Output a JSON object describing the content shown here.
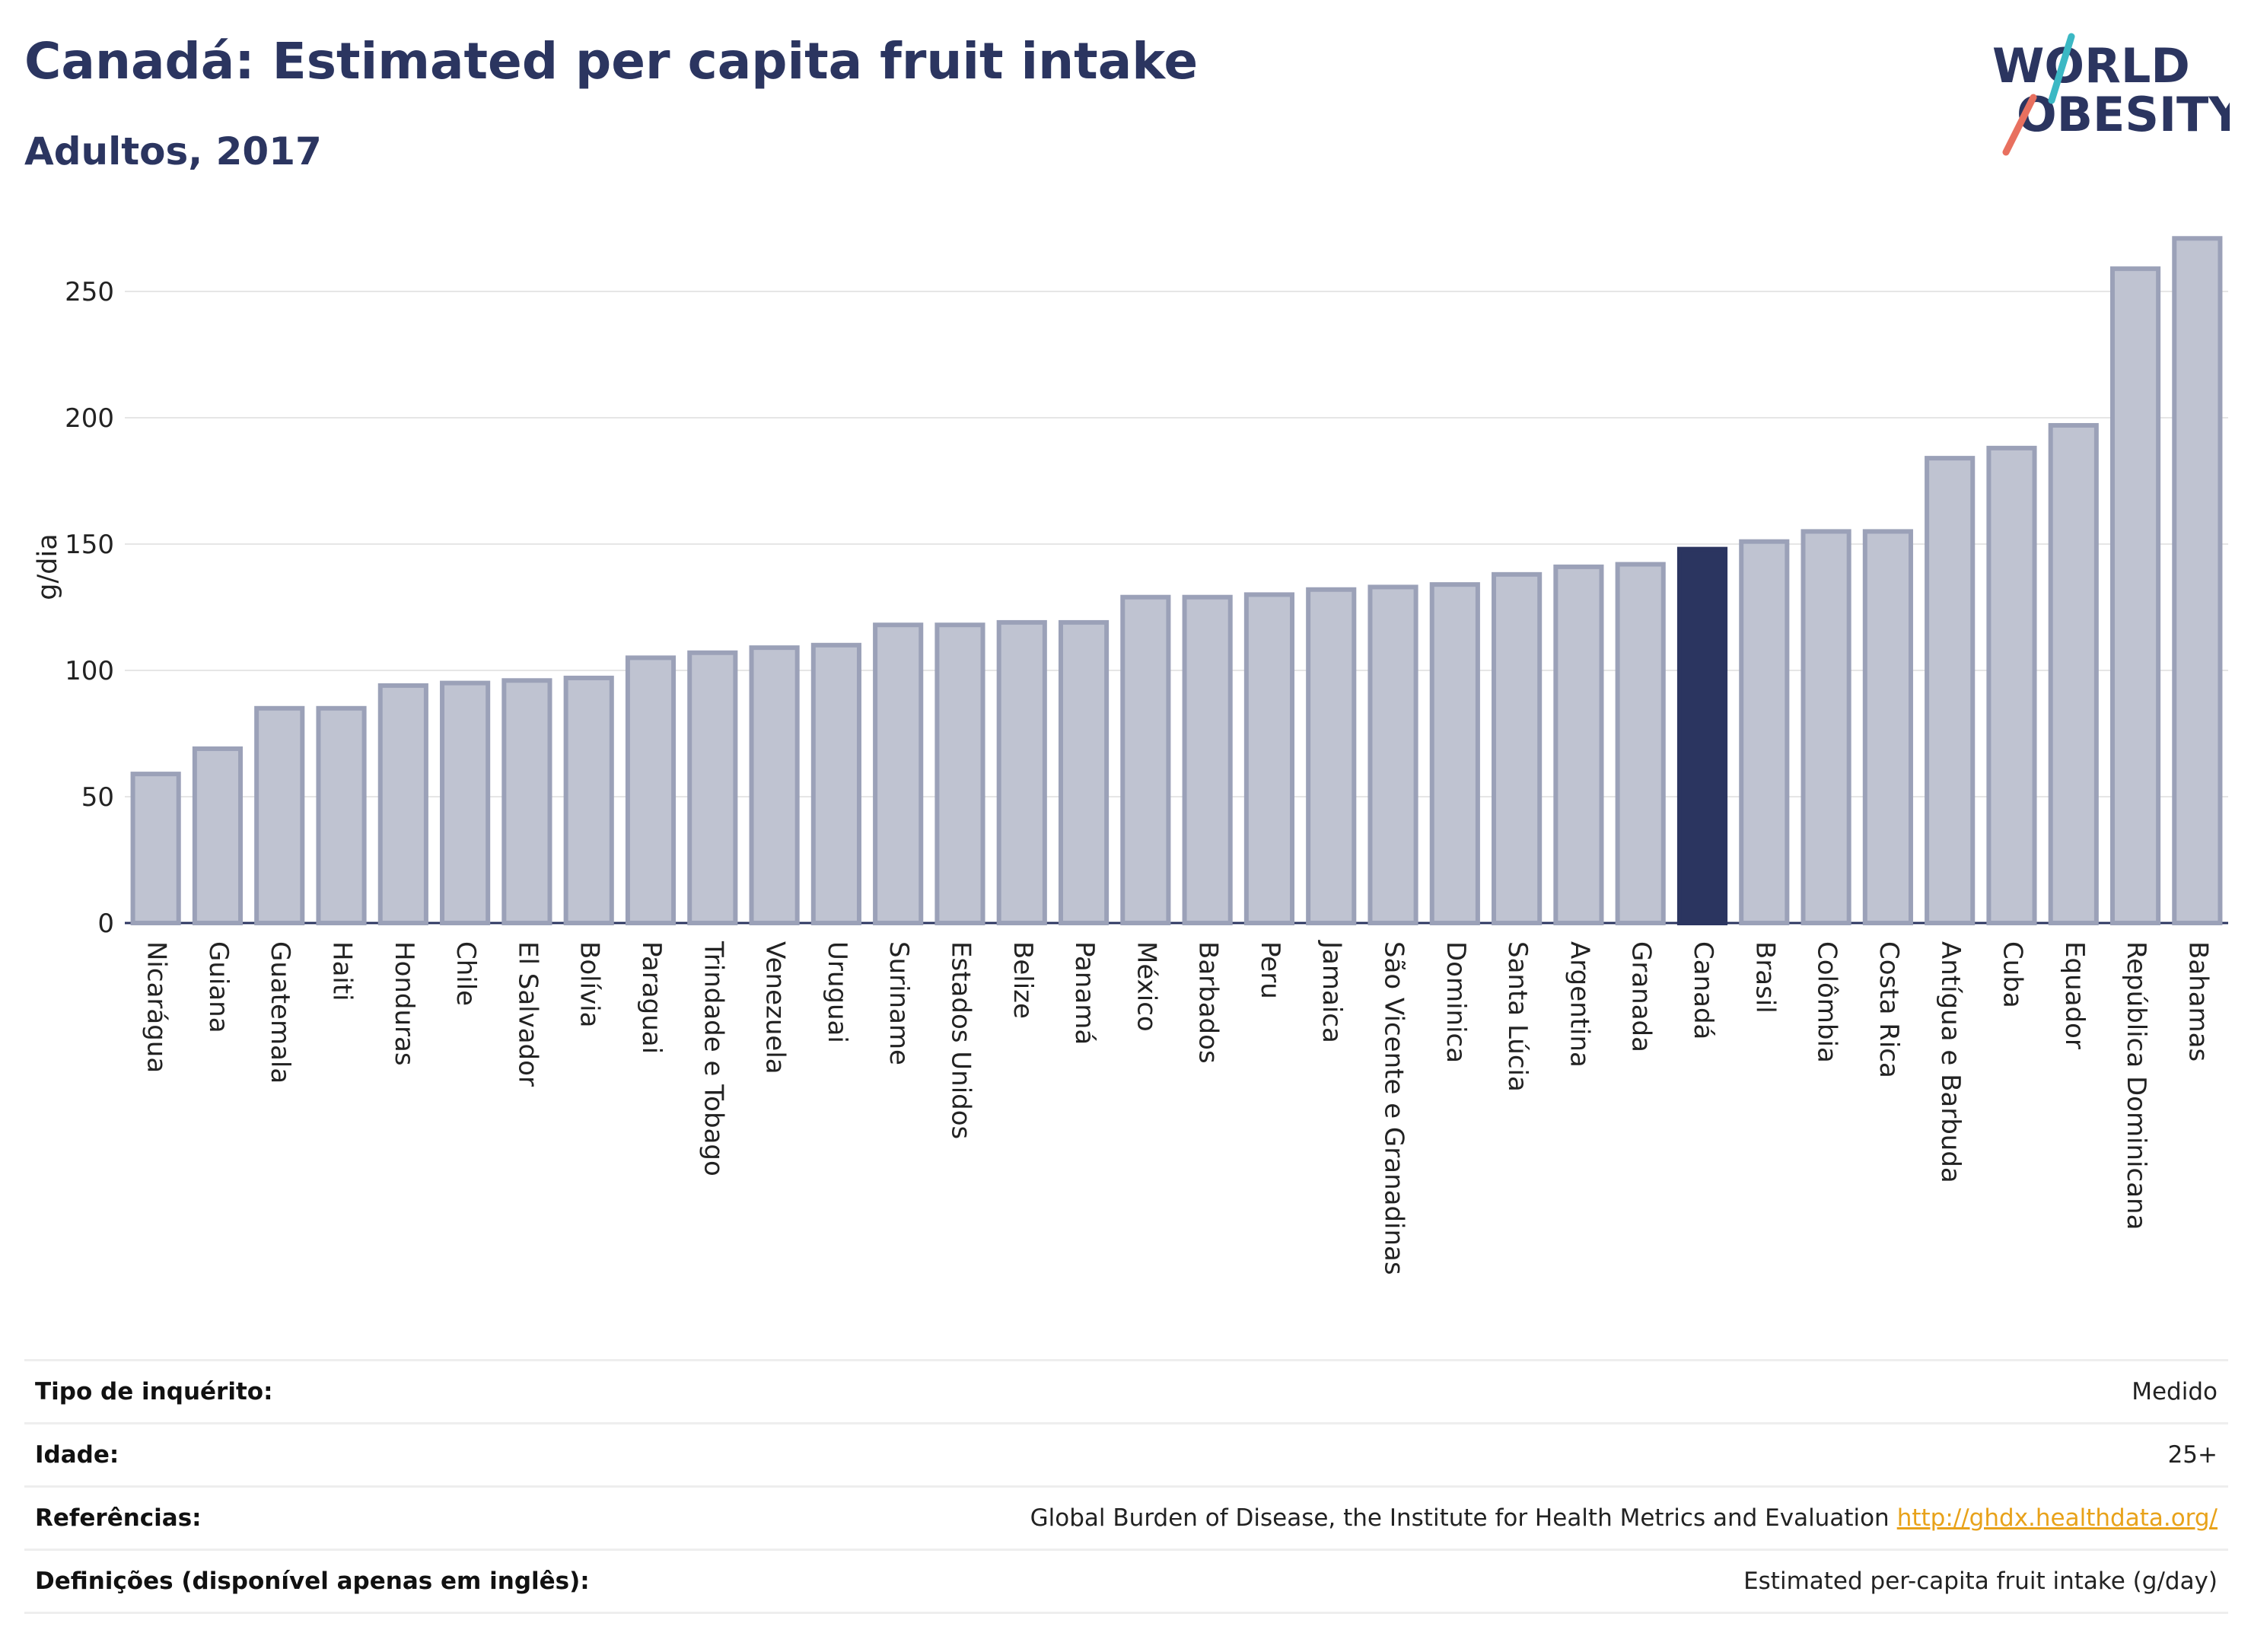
{
  "header": {
    "title": "Canadá: Estimated per capita fruit intake",
    "subtitle": "Adultos, 2017"
  },
  "logo": {
    "line1": "WORLD",
    "line2": "OBESITY",
    "icon": "world-obesity-logo"
  },
  "colors": {
    "bar_fill": "#bfc3d1",
    "bar_stroke": "#9ba1b8",
    "highlight": "#2b3560",
    "title": "#2b3560",
    "link": "#e8a21a"
  },
  "chart_data": {
    "type": "bar",
    "ylabel": "g/dia",
    "xlabel": "",
    "ylim": [
      0,
      275
    ],
    "yticks": [
      0,
      50,
      100,
      150,
      200,
      250
    ],
    "grid": true,
    "highlight": "Canadá",
    "categories": [
      "Nicarágua",
      "Guiana",
      "Guatemala",
      "Haiti",
      "Honduras",
      "Chile",
      "El Salvador",
      "Bolívia",
      "Paraguai",
      "Trindade e Tobago",
      "Venezuela",
      "Uruguai",
      "Suriname",
      "Estados Unidos",
      "Belize",
      "Panamá",
      "México",
      "Barbados",
      "Peru",
      "Jamaica",
      "São Vicente e Granadinas",
      "Dominica",
      "Santa Lúcia",
      "Argentina",
      "Granada",
      "Canadá",
      "Brasil",
      "Colômbia",
      "Costa Rica",
      "Antígua e Barbuda",
      "Cuba",
      "Equador",
      "República Dominicana",
      "Bahamas"
    ],
    "values": [
      59,
      69,
      85,
      85,
      94,
      95,
      96,
      97,
      105,
      107,
      109,
      110,
      118,
      118,
      119,
      119,
      129,
      129,
      130,
      132,
      133,
      134,
      138,
      141,
      142,
      148,
      151,
      155,
      155,
      184,
      188,
      197,
      259,
      271
    ]
  },
  "info": {
    "survey_type_label": "Tipo de inquérito:",
    "survey_type_value": "Medido",
    "age_label": "Idade:",
    "age_value": "25+",
    "refs_label": "Referências:",
    "refs_value": "Global Burden of Disease, the Institute for Health Metrics and Evaluation",
    "refs_link": "http://ghdx.healthdata.org/",
    "defs_label": "Definições (disponível apenas em inglês):",
    "defs_value": "Estimated per-capita fruit intake (g/day)"
  }
}
